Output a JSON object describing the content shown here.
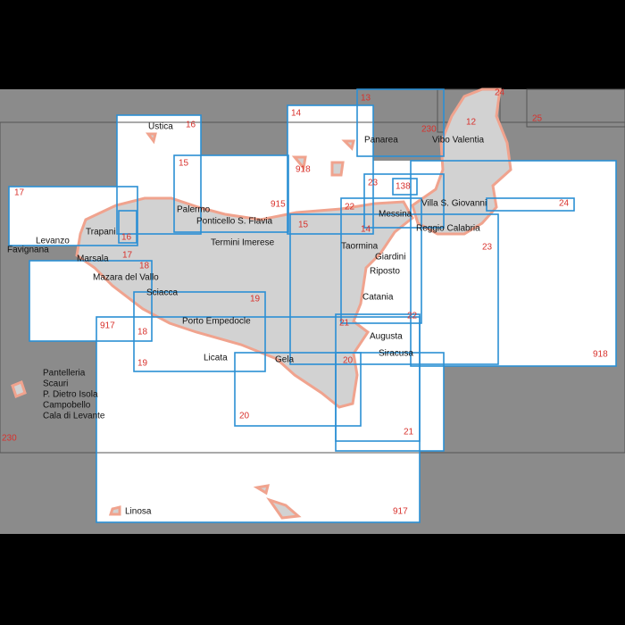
{
  "places": [
    "Ustica",
    "Panarea",
    "Vibo Valentia",
    "Palermo",
    "Ponticello S. Flavia",
    "Villa S. Giovanni",
    "Messina",
    "Reggio Calabria",
    "Levanzo",
    "Favignana",
    "Trapani",
    "Termini Imerese",
    "Taormina",
    "Giardini",
    "Riposto",
    "Marsala",
    "Mazara del Vallo",
    "Sciacca",
    "Catania",
    "Porto Empedocle",
    "Augusta",
    "Siracusa",
    "Licata",
    "Gela",
    "Pantelleria",
    "Scauri",
    "P. Dietro Isola",
    "Campobello",
    "Cala di Levante",
    "Linosa"
  ],
  "chart_numbers": [
    "13",
    "24",
    "12",
    "25",
    "230",
    "16",
    "14",
    "15",
    "918",
    "915",
    "23",
    "138",
    "22",
    "24",
    "17",
    "16",
    "17",
    "18",
    "14",
    "23",
    "19",
    "917",
    "18",
    "21",
    "22",
    "19",
    "20",
    "918",
    "20",
    "21",
    "917",
    "230",
    "15"
  ]
}
